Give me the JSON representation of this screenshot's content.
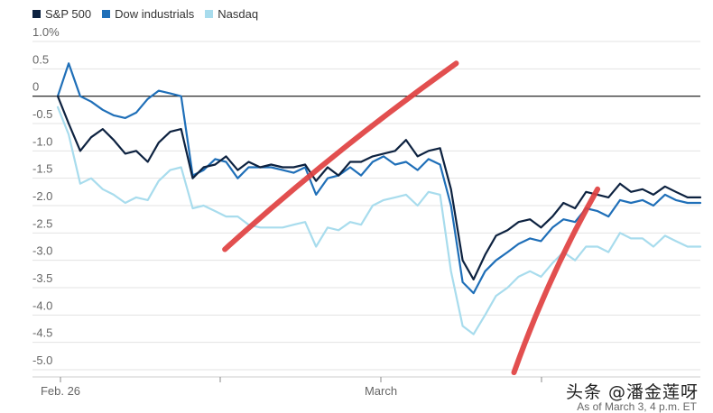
{
  "chart_data": {
    "type": "line",
    "legend": [
      {
        "name": "S&P 500",
        "color": "#0d2240"
      },
      {
        "name": "Dow industrials",
        "color": "#1f6fb8"
      },
      {
        "name": "Nasdaq",
        "color": "#a8dced"
      }
    ],
    "y_ticks": [
      "1.0%",
      "0.5",
      "0",
      "-0.5",
      "-1.0",
      "-1.5",
      "-2.0",
      "-2.5",
      "-3.0",
      "-3.5",
      "-4.0",
      "-4.5",
      "-5.0"
    ],
    "ylim": [
      -5.0,
      1.0
    ],
    "x_ticks": [
      "Feb. 26",
      "March"
    ],
    "x_range": [
      0,
      1
    ],
    "series": [
      {
        "name": "S&P 500",
        "color": "#0d2240",
        "x": [
          0,
          0.017,
          0.035,
          0.052,
          0.07,
          0.087,
          0.105,
          0.122,
          0.14,
          0.157,
          0.175,
          0.192,
          0.21,
          0.227,
          0.245,
          0.262,
          0.28,
          0.297,
          0.315,
          0.332,
          0.35,
          0.367,
          0.385,
          0.402,
          0.42,
          0.437,
          0.455,
          0.472,
          0.49,
          0.507,
          0.525,
          0.542,
          0.56,
          0.577,
          0.595,
          0.612,
          0.63,
          0.647,
          0.665,
          0.682,
          0.7,
          0.717,
          0.735,
          0.752,
          0.77,
          0.787,
          0.805,
          0.822,
          0.84,
          0.857,
          0.875,
          0.892,
          0.91,
          0.927,
          0.945,
          0.962,
          0.98,
          1.0
        ],
        "values": [
          0.0,
          -0.5,
          -1.0,
          -0.75,
          -0.6,
          -0.8,
          -1.05,
          -1.0,
          -1.2,
          -0.85,
          -0.65,
          -0.6,
          -1.5,
          -1.3,
          -1.25,
          -1.1,
          -1.35,
          -1.2,
          -1.3,
          -1.25,
          -1.3,
          -1.3,
          -1.25,
          -1.55,
          -1.3,
          -1.45,
          -1.2,
          -1.2,
          -1.1,
          -1.05,
          -1.0,
          -0.8,
          -1.1,
          -1.0,
          -0.95,
          -1.7,
          -3.0,
          -3.35,
          -2.9,
          -2.55,
          -2.45,
          -2.3,
          -2.25,
          -2.4,
          -2.2,
          -1.95,
          -2.05,
          -1.75,
          -1.8,
          -1.85,
          -1.6,
          -1.75,
          -1.7,
          -1.8,
          -1.65,
          -1.75,
          -1.85,
          -1.85
        ]
      },
      {
        "name": "Dow industrials",
        "color": "#1f6fb8",
        "x": [
          0,
          0.017,
          0.035,
          0.052,
          0.07,
          0.087,
          0.105,
          0.122,
          0.14,
          0.157,
          0.175,
          0.192,
          0.21,
          0.227,
          0.245,
          0.262,
          0.28,
          0.297,
          0.315,
          0.332,
          0.35,
          0.367,
          0.385,
          0.402,
          0.42,
          0.437,
          0.455,
          0.472,
          0.49,
          0.507,
          0.525,
          0.542,
          0.56,
          0.577,
          0.595,
          0.612,
          0.63,
          0.647,
          0.665,
          0.682,
          0.7,
          0.717,
          0.735,
          0.752,
          0.77,
          0.787,
          0.805,
          0.822,
          0.84,
          0.857,
          0.875,
          0.892,
          0.91,
          0.927,
          0.945,
          0.962,
          0.98,
          1.0
        ],
        "values": [
          0.0,
          0.6,
          0.0,
          -0.1,
          -0.25,
          -0.35,
          -0.4,
          -0.3,
          -0.05,
          0.1,
          0.05,
          0.0,
          -1.45,
          -1.35,
          -1.15,
          -1.2,
          -1.5,
          -1.3,
          -1.3,
          -1.3,
          -1.35,
          -1.4,
          -1.3,
          -1.8,
          -1.5,
          -1.45,
          -1.3,
          -1.45,
          -1.2,
          -1.1,
          -1.25,
          -1.2,
          -1.35,
          -1.15,
          -1.25,
          -2.0,
          -3.4,
          -3.6,
          -3.2,
          -3.0,
          -2.85,
          -2.7,
          -2.6,
          -2.65,
          -2.4,
          -2.25,
          -2.3,
          -2.05,
          -2.1,
          -2.2,
          -1.9,
          -1.95,
          -1.9,
          -2.0,
          -1.8,
          -1.9,
          -1.95,
          -1.95
        ]
      },
      {
        "name": "Nasdaq",
        "color": "#a8dced",
        "x": [
          0,
          0.017,
          0.035,
          0.052,
          0.07,
          0.087,
          0.105,
          0.122,
          0.14,
          0.157,
          0.175,
          0.192,
          0.21,
          0.227,
          0.245,
          0.262,
          0.28,
          0.297,
          0.315,
          0.332,
          0.35,
          0.367,
          0.385,
          0.402,
          0.42,
          0.437,
          0.455,
          0.472,
          0.49,
          0.507,
          0.525,
          0.542,
          0.56,
          0.577,
          0.595,
          0.612,
          0.63,
          0.647,
          0.665,
          0.682,
          0.7,
          0.717,
          0.735,
          0.752,
          0.77,
          0.787,
          0.805,
          0.822,
          0.84,
          0.857,
          0.875,
          0.892,
          0.91,
          0.927,
          0.945,
          0.962,
          0.98,
          1.0
        ],
        "values": [
          -0.2,
          -0.7,
          -1.6,
          -1.5,
          -1.7,
          -1.8,
          -1.95,
          -1.85,
          -1.9,
          -1.55,
          -1.35,
          -1.3,
          -2.05,
          -2.0,
          -2.1,
          -2.2,
          -2.2,
          -2.35,
          -2.4,
          -2.4,
          -2.4,
          -2.35,
          -2.3,
          -2.75,
          -2.4,
          -2.45,
          -2.3,
          -2.35,
          -2.0,
          -1.9,
          -1.85,
          -1.8,
          -2.0,
          -1.75,
          -1.8,
          -3.2,
          -4.2,
          -4.35,
          -4.0,
          -3.65,
          -3.5,
          -3.3,
          -3.2,
          -3.3,
          -3.05,
          -2.85,
          -3.0,
          -2.75,
          -2.75,
          -2.85,
          -2.5,
          -2.6,
          -2.6,
          -2.75,
          -2.55,
          -2.65,
          -2.75,
          -2.75
        ]
      }
    ],
    "annotations": [
      {
        "type": "freehand-stroke",
        "color": "#e04040",
        "from": [
          0.26,
          -2.8
        ],
        "to": [
          0.62,
          0.6
        ]
      },
      {
        "type": "freehand-stroke",
        "color": "#e04040",
        "from": [
          0.71,
          -5.05
        ],
        "to": [
          0.84,
          -1.7
        ]
      }
    ]
  },
  "footer": {
    "watermark": "头条 @潘金莲呀",
    "asof": "As of March 3, 4 p.m. ET"
  }
}
